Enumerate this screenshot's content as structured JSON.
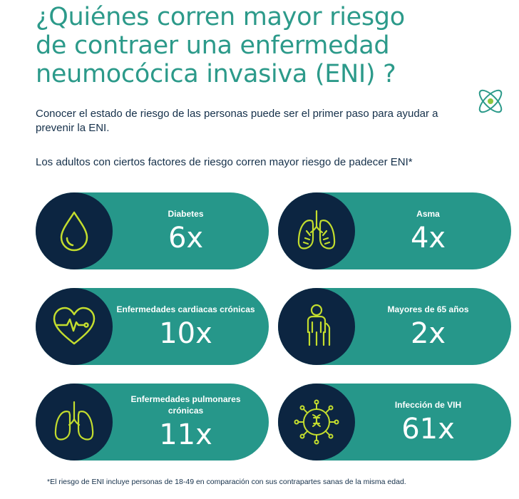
{
  "title": "¿Quiénes corren mayor riesgo de contraer una enfermedad neumocócica invasiva (ENI) ?",
  "intro": "Conocer el estado de riesgo de las personas puede ser el primer paso para ayudar a prevenir la ENI.",
  "subheading": "Los adultos con ciertos factores de riesgo corren mayor riesgo de padecer ENI*",
  "colors": {
    "title": "#2c9a8a",
    "text": "#15304a",
    "card": "#26978a",
    "icon_circle": "#0c2541",
    "icon_stroke": "#c3dd2e"
  },
  "risk_factors": [
    {
      "label": "Diabetes",
      "value": "6x",
      "icon": "water-drop-icon"
    },
    {
      "label": "Asma",
      "value": "4x",
      "icon": "lungs-icon"
    },
    {
      "label": "Enfermedades cardiacas crónicas",
      "value": "10x",
      "icon": "heart-pulse-icon"
    },
    {
      "label": "Mayores de 65 años",
      "value": "2x",
      "icon": "elderly-person-icon"
    },
    {
      "label": "Enfermedades pulmonares crónicas",
      "value": "11x",
      "icon": "lungs-outline-icon"
    },
    {
      "label": "Infección de VIH",
      "value": "61x",
      "icon": "virus-icon"
    }
  ],
  "footnote": "*El riesgo de ENI incluye personas de 18-49 en comparación con sus contrapartes sanas de la misma edad."
}
